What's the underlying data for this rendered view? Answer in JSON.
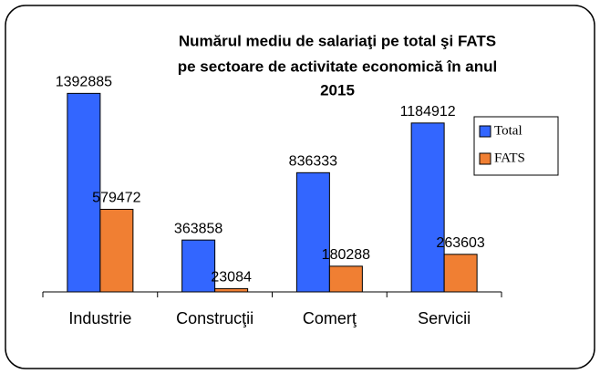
{
  "chart_data": {
    "type": "bar",
    "title": [
      "Numărul mediu de salariaţi pe total şi FATS",
      "pe sectoare de activitate economică în anul",
      "2015"
    ],
    "categories": [
      "Industrie",
      "Construcţii",
      "Comerţ",
      "Servicii"
    ],
    "series": [
      {
        "name": "Total",
        "color": "#3366ff",
        "values": [
          1392885,
          363858,
          836333,
          1184912
        ]
      },
      {
        "name": "FATS",
        "color": "#f07f33",
        "values": [
          579472,
          23084,
          180288,
          263603
        ]
      }
    ],
    "ylim": [
      0,
      1600000
    ],
    "legend": "right"
  }
}
